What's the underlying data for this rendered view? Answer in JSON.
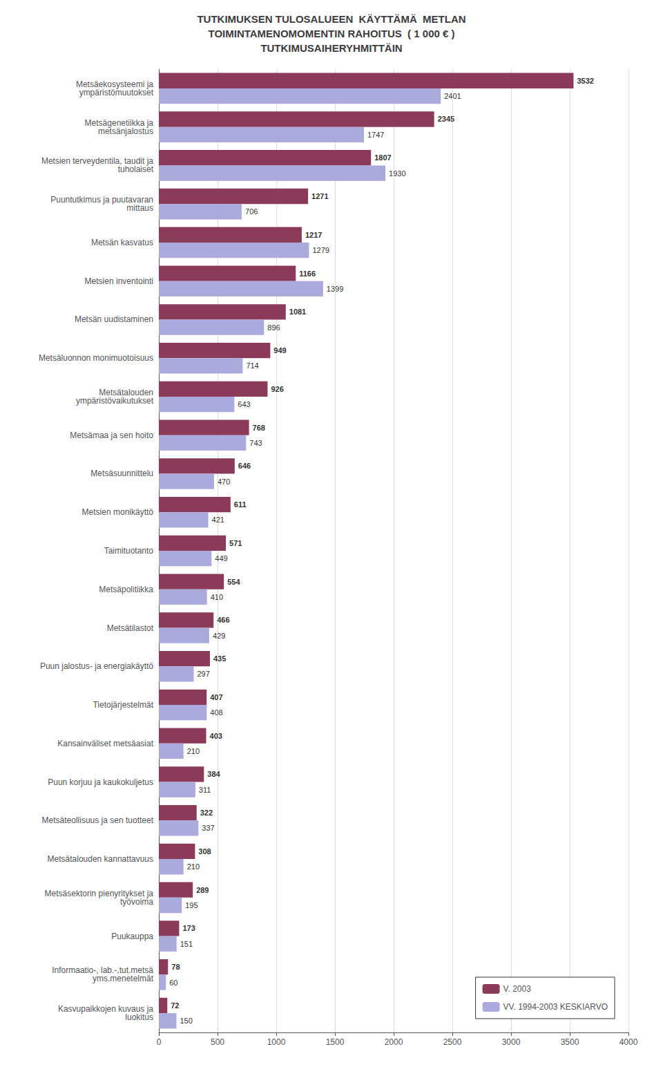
{
  "chart_data": {
    "type": "bar",
    "orientation": "horizontal",
    "title": "TUTKIMUKSEN TULOSALUEEN  KÄYTTÄMÄ  METLAN\nTOIMINTAMENOMOMENTIN RAHOITUS  ( 1 000 € )\nTUTKIMUSAIHERYHMITTÄIN",
    "categories": [
      "Metsäekosysteemi ja\nympäristömuutokset",
      "Metsägenetiikka ja\nmetsänjalostus",
      "Metsien terveydentila, taudit ja\ntuholaiset",
      "Puuntutkimus ja puutavaran\nmittaus",
      "Metsän kasvatus",
      "Metsien inventointi",
      "Metsän uudistaminen",
      "Metsäluonnon monimuotoisuus",
      "Metsätalouden\nympäristövaikutukset",
      "Metsämaa ja sen hoito",
      "Metsäsuunnittelu",
      "Metsien monikäyttö",
      "Taimituotanto",
      "Metsäpolitiikka",
      "Metsätilastot",
      "Puun jalostus- ja energiakäyttö",
      "Tietojärjestelmät",
      "Kansainväliset metsäasiat",
      "Puun korjuu ja kaukokuljetus",
      "Metsäteollisuus ja sen tuotteet",
      "Metsätalouden kannattavuus",
      "Metsäsektorin pienyritykset ja\ntyövoima",
      "Puukauppa",
      "Informaatio-, lab.-,tut.metsä\nyms.menetelmät",
      "Kasvupaikkojen kuvaus ja\nluokitus"
    ],
    "series": [
      {
        "name": "V. 2003",
        "color": "#8B3A5A",
        "values": [
          3532,
          2345,
          1807,
          1271,
          1217,
          1166,
          1081,
          949,
          926,
          768,
          646,
          611,
          571,
          554,
          466,
          435,
          407,
          403,
          384,
          322,
          308,
          289,
          173,
          78,
          72
        ]
      },
      {
        "name": "VV. 1994-2003 KESKIARVO",
        "color": "#AAAADD",
        "values": [
          2401,
          1747,
          1930,
          706,
          1279,
          1399,
          896,
          714,
          643,
          743,
          470,
          421,
          449,
          410,
          429,
          297,
          408,
          210,
          311,
          337,
          210,
          195,
          151,
          60,
          150
        ]
      }
    ],
    "xlim": [
      0,
      4000
    ],
    "xticks": [
      0,
      500,
      1000,
      1500,
      2000,
      2500,
      3000,
      3500,
      4000
    ],
    "grid": true,
    "legend": "lower right",
    "data_labels": true
  }
}
